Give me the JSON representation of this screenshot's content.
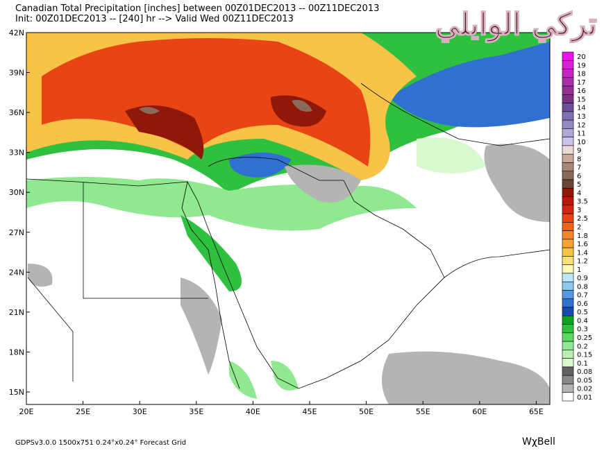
{
  "header": {
    "line1": "Canadian Total Precipitation [inches] between 00Z01DEC2013 -- 00Z11DEC2013",
    "line2": "Init: 00Z01DEC2013 -- [240] hr --> Valid Wed 00Z11DEC2013"
  },
  "watermark": "تركي الوايلي",
  "map": {
    "xlim": [
      20,
      66.2
    ],
    "ylim": [
      14.06,
      42
    ],
    "xticks": [
      {
        "value": 20,
        "label": "20E"
      },
      {
        "value": 25,
        "label": "25E"
      },
      {
        "value": 30,
        "label": "30E"
      },
      {
        "value": 35,
        "label": "35E"
      },
      {
        "value": 40,
        "label": "40E"
      },
      {
        "value": 45,
        "label": "45E"
      },
      {
        "value": 50,
        "label": "50E"
      },
      {
        "value": 55,
        "label": "55E"
      },
      {
        "value": 60,
        "label": "60E"
      },
      {
        "value": 65,
        "label": "65E"
      }
    ],
    "yticks": [
      {
        "value": 42,
        "label": "42N"
      },
      {
        "value": 39,
        "label": "39N"
      },
      {
        "value": 36,
        "label": "36N"
      },
      {
        "value": 33,
        "label": "33N"
      },
      {
        "value": 30,
        "label": "30N"
      },
      {
        "value": 27,
        "label": "27N"
      },
      {
        "value": 24,
        "label": "24N"
      },
      {
        "value": 21,
        "label": "21N"
      },
      {
        "value": 18,
        "label": "18N"
      },
      {
        "value": 15,
        "label": "15N"
      }
    ]
  },
  "colorbar": {
    "levels": [
      {
        "label": "20",
        "color": "#f010f0"
      },
      {
        "label": "19",
        "color": "#d820d8"
      },
      {
        "label": "18",
        "color": "#c028c0"
      },
      {
        "label": "17",
        "color": "#a830a8"
      },
      {
        "label": "16",
        "color": "#943094"
      },
      {
        "label": "15",
        "color": "#803080"
      },
      {
        "label": "14",
        "color": "#6e4e9a"
      },
      {
        "label": "13",
        "color": "#8070b0"
      },
      {
        "label": "12",
        "color": "#9888c4"
      },
      {
        "label": "11",
        "color": "#b0a8d8"
      },
      {
        "label": "10",
        "color": "#ccc4e8"
      },
      {
        "label": "9",
        "color": "#eadcd4"
      },
      {
        "label": "8",
        "color": "#c8a898"
      },
      {
        "label": "7",
        "color": "#a88878"
      },
      {
        "label": "6",
        "color": "#8a6a5a"
      },
      {
        "label": "5",
        "color": "#6a4636"
      },
      {
        "label": "4",
        "color": "#901808"
      },
      {
        "label": "3.5",
        "color": "#b41a0a"
      },
      {
        "label": "3",
        "color": "#d42412"
      },
      {
        "label": "2.5",
        "color": "#e84414"
      },
      {
        "label": "2",
        "color": "#f0641a"
      },
      {
        "label": "1.8",
        "color": "#f48424"
      },
      {
        "label": "1.6",
        "color": "#f8a432"
      },
      {
        "label": "1.4",
        "color": "#f8c448"
      },
      {
        "label": "1.2",
        "color": "#f8e07a"
      },
      {
        "label": "1",
        "color": "#fafab8"
      },
      {
        "label": "0.9",
        "color": "#bce8f8"
      },
      {
        "label": "0.8",
        "color": "#90c8f0"
      },
      {
        "label": "0.7",
        "color": "#5898e0"
      },
      {
        "label": "0.6",
        "color": "#3070d0"
      },
      {
        "label": "0.5",
        "color": "#1848b0"
      },
      {
        "label": "0.4",
        "color": "#10a020"
      },
      {
        "label": "0.3",
        "color": "#30c040"
      },
      {
        "label": "0.25",
        "color": "#60d860"
      },
      {
        "label": "0.2",
        "color": "#90e890"
      },
      {
        "label": "0.15",
        "color": "#b8f0b0"
      },
      {
        "label": "0.1",
        "color": "#d8f8d0"
      },
      {
        "label": "0.08",
        "color": "#606060"
      },
      {
        "label": "0.05",
        "color": "#888888"
      },
      {
        "label": "0.02",
        "color": "#b4b4b4"
      },
      {
        "label": "0.01",
        "color": "#ffffff"
      }
    ]
  },
  "footer": {
    "model": "GDPSv3.0.0  1500x751  0.24°x0.24°  Forecast Grid",
    "logo": "WχBell"
  }
}
